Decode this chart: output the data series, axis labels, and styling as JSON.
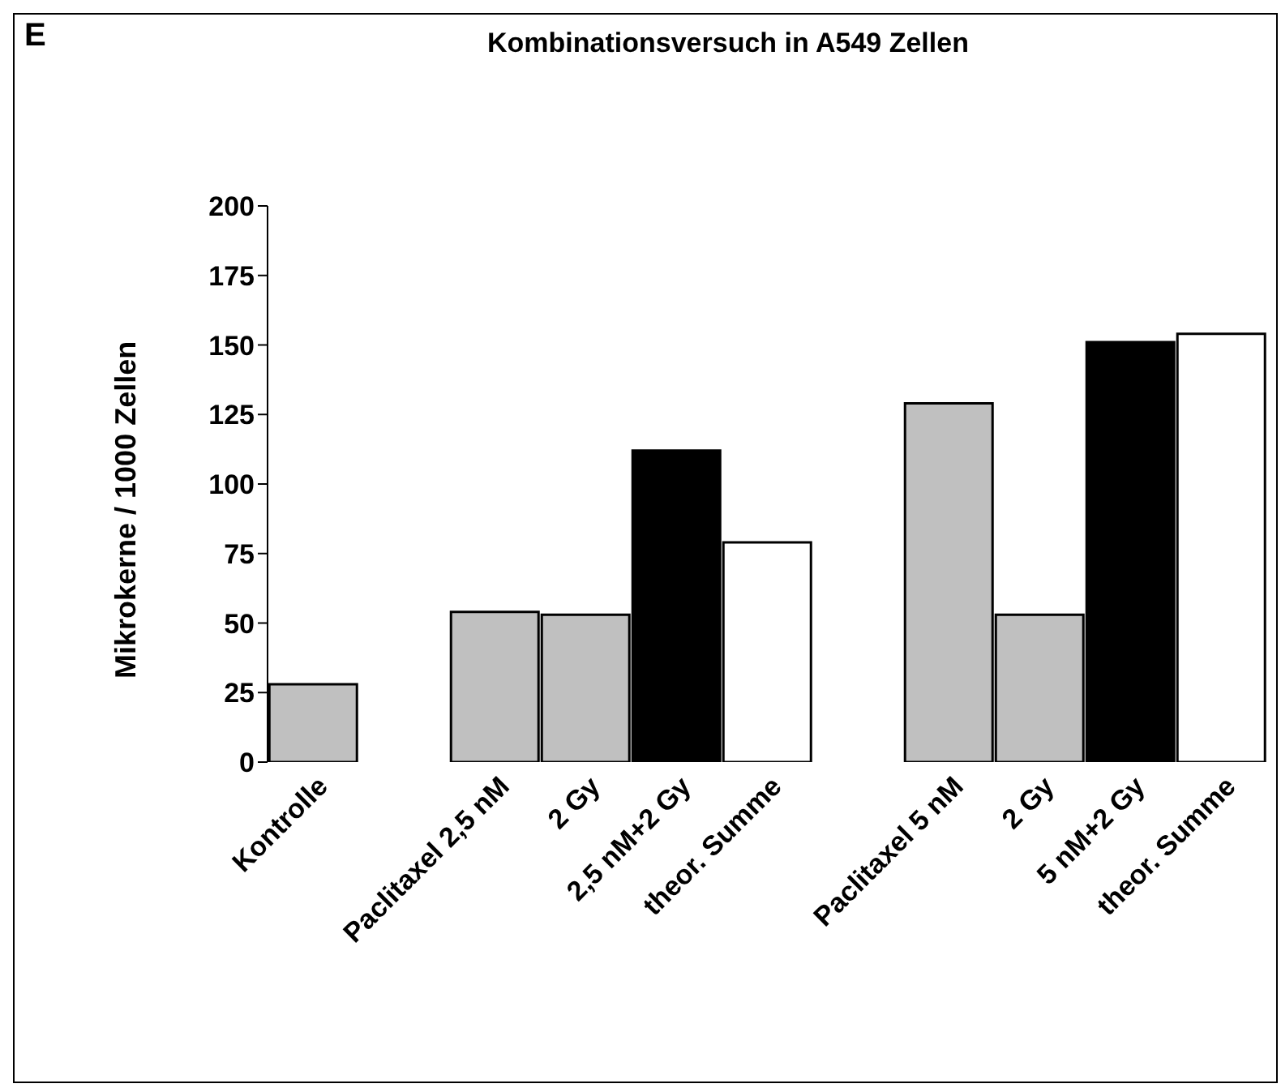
{
  "chart_data": {
    "type": "bar",
    "title": "Kombinationsversuch in A549 Zellen",
    "ylabel": "Mikrokerne / 1000 Zellen",
    "annotations": [
      "E"
    ],
    "categories": [
      "Kontrolle",
      null,
      "Paclitaxel 2,5 nM",
      "2 Gy",
      "2,5 nM+2 Gy",
      "theor. Summe",
      null,
      "Paclitaxel 5 nM",
      "2 Gy",
      "5 nM+2 Gy",
      "theor. Summe"
    ],
    "values": [
      28,
      null,
      54,
      53,
      112,
      79,
      null,
      129,
      53,
      151,
      154
    ],
    "colors": [
      "#c0c0c0",
      "#c0c0c0",
      "#c0c0c0",
      "#c0c0c0",
      "#000000",
      "#ffffff",
      "#c0c0c0",
      "#c0c0c0",
      "#c0c0c0",
      "#000000",
      "#ffffff"
    ],
    "ylim": [
      0,
      200
    ],
    "yticks": [
      0,
      25,
      50,
      75,
      100,
      125,
      150,
      175,
      200
    ],
    "grid": false,
    "legend": false
  }
}
